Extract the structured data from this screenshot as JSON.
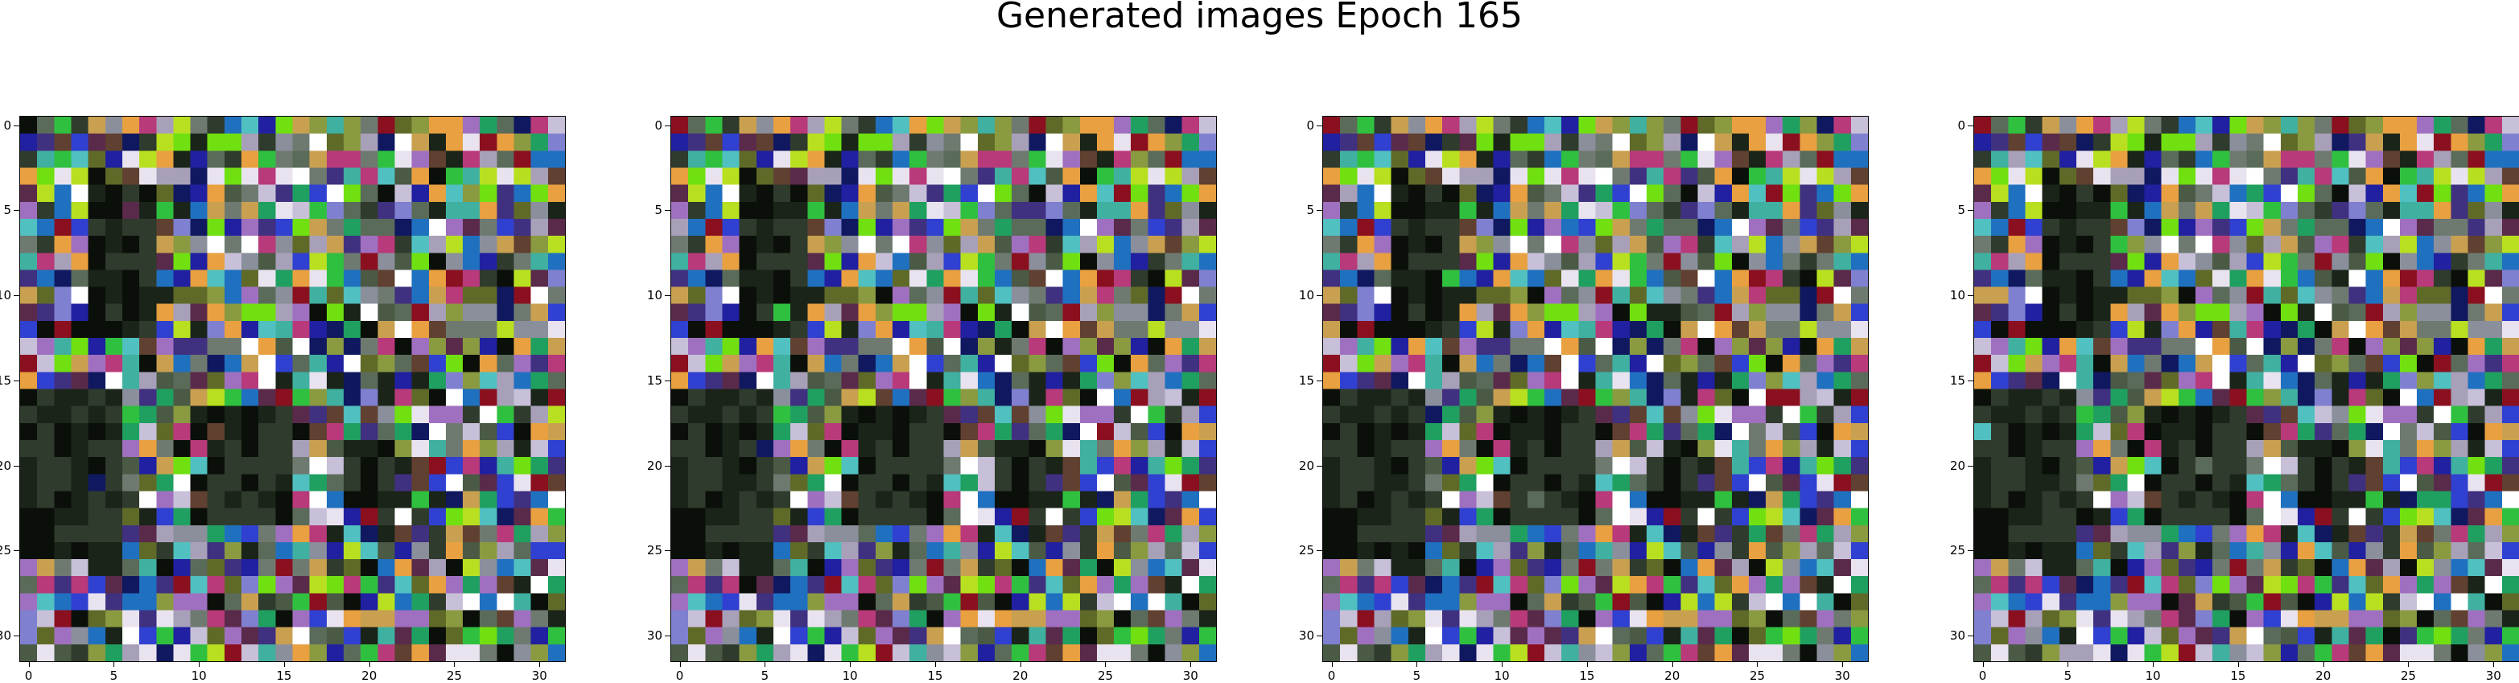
{
  "title": "Generated images Epoch 165",
  "panels": [
    {
      "name": "generated-image-1"
    },
    {
      "name": "generated-image-2"
    },
    {
      "name": "generated-image-3"
    },
    {
      "name": "generated-image-4"
    }
  ],
  "axes": {
    "image_size": 32,
    "x_ticks": [
      "0",
      "5",
      "10",
      "15",
      "20",
      "25",
      "30"
    ],
    "y_ticks": [
      "0",
      "5",
      "10",
      "15",
      "20",
      "25",
      "30"
    ]
  },
  "colors": {
    "background": "#ffffff",
    "axis": "#000000",
    "palette": [
      "#0b0f0a",
      "#1a2419",
      "#2f3b2c",
      "#4a5a45",
      "#5b6b5a",
      "#6e7a70",
      "#8a8f9b",
      "#a8a0b8",
      "#c7c0d8",
      "#e9e3ef",
      "#ffffff",
      "#5a2a4a",
      "#8a1020",
      "#b83a7a",
      "#c9a050",
      "#e8a040",
      "#b8e020",
      "#70e010",
      "#30c040",
      "#20a060",
      "#40b0a0",
      "#50c0c0",
      "#2070c0",
      "#3040d0",
      "#2020a0",
      "#101860",
      "#403080",
      "#8080d0",
      "#a070c0",
      "#604030",
      "#8a9a40",
      "#606a28"
    ]
  }
}
